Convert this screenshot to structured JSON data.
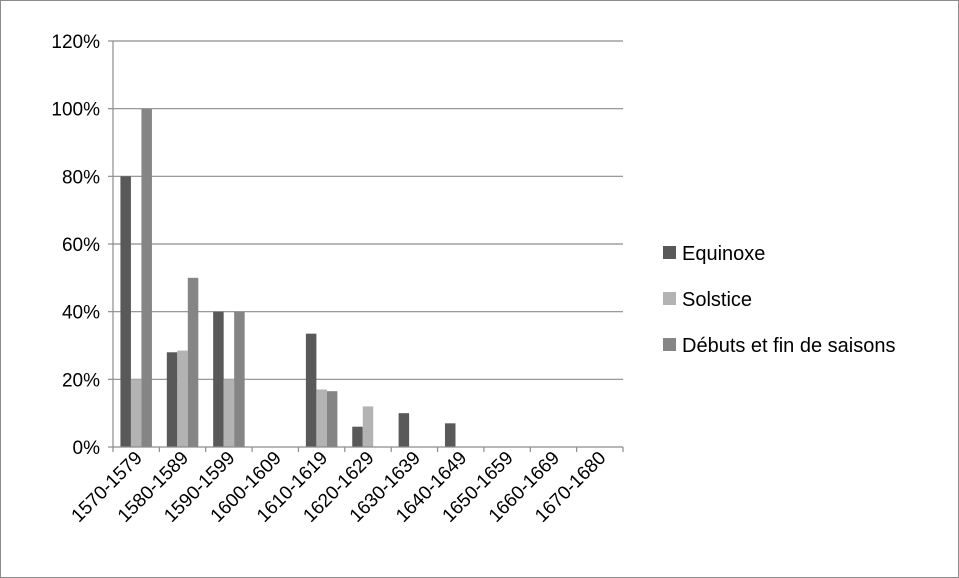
{
  "chart_data": {
    "type": "bar",
    "title": "",
    "xlabel": "",
    "ylabel": "",
    "categories": [
      "1570-1579",
      "1580-1589",
      "1590-1599",
      "1600-1609",
      "1610-1619",
      "1620-1629",
      "1630-1639",
      "1640-1649",
      "1650-1659",
      "1660-1669",
      "1670-1680"
    ],
    "series": [
      {
        "name": "Equinoxe",
        "color": "#595959",
        "values": [
          80,
          28,
          40,
          0,
          33.5,
          6,
          10,
          7,
          0,
          0,
          0
        ]
      },
      {
        "name": "Solstice",
        "color": "#b3b3b3",
        "values": [
          20,
          28.5,
          20,
          0,
          17,
          12,
          0,
          0,
          0,
          0,
          0
        ]
      },
      {
        "name": "Débuts et fin de saisons",
        "color": "#858585",
        "values": [
          100,
          50,
          40,
          0,
          16.5,
          0,
          0,
          0,
          0,
          0,
          0
        ]
      }
    ],
    "ylim": [
      0,
      120
    ],
    "yticks": [
      0,
      20,
      40,
      60,
      80,
      100,
      120
    ],
    "ytick_labels": [
      "0%",
      "20%",
      "40%",
      "60%",
      "80%",
      "100%",
      "120%"
    ],
    "grid": true,
    "legend_position": "right"
  }
}
